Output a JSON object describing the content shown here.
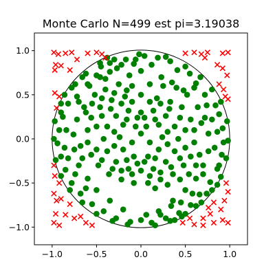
{
  "chart_data": {
    "type": "scatter",
    "title": "Monte Carlo N=499 est pi=3.19038",
    "xlabel": "",
    "ylabel": "",
    "xlim": [
      -1.2,
      1.2
    ],
    "ylim": [
      -1.2,
      1.2
    ],
    "xticks": [
      -1.0,
      -0.5,
      0.0,
      0.5,
      1.0
    ],
    "yticks": [
      -1.0,
      -0.5,
      0.0,
      0.5,
      1.0
    ],
    "xtick_labels": [
      "−1.0",
      "−0.5",
      "0.0",
      "0.5",
      "1.0"
    ],
    "ytick_labels": [
      "−1.0",
      "−0.5",
      "0.0",
      "0.5",
      "1.0"
    ],
    "grid": false,
    "reference_circle": {
      "center": [
        0,
        0
      ],
      "radius": 1,
      "color": "#000000"
    },
    "n_points": 499,
    "pi_estimate": 3.19038,
    "series": [
      {
        "marker": "circle",
        "color": "#008000",
        "points": [
          [
            -0.02,
            0.96
          ],
          [
            0.04,
            0.94
          ],
          [
            -0.17,
            0.9
          ],
          [
            0.19,
            0.92
          ],
          [
            -0.35,
            0.86
          ],
          [
            0.33,
            0.88
          ],
          [
            -0.08,
            0.85
          ],
          [
            0.12,
            0.84
          ],
          [
            -0.27,
            0.8
          ],
          [
            0.41,
            0.78
          ],
          [
            -0.5,
            0.72
          ],
          [
            0.55,
            0.74
          ],
          [
            -0.6,
            0.62
          ],
          [
            0.62,
            0.63
          ],
          [
            0.0,
            0.77
          ],
          [
            -0.13,
            0.72
          ],
          [
            0.23,
            0.7
          ],
          [
            -0.4,
            0.68
          ],
          [
            0.35,
            0.64
          ],
          [
            0.48,
            0.55
          ],
          [
            -0.72,
            0.48
          ],
          [
            0.72,
            0.5
          ],
          [
            -0.82,
            0.4
          ],
          [
            0.84,
            0.38
          ],
          [
            -0.88,
            0.25
          ],
          [
            0.88,
            0.28
          ],
          [
            -0.92,
            0.1
          ],
          [
            0.92,
            0.12
          ],
          [
            -0.94,
            -0.05
          ],
          [
            0.93,
            -0.04
          ],
          [
            -0.9,
            -0.2
          ],
          [
            0.91,
            -0.18
          ],
          [
            -0.85,
            -0.35
          ],
          [
            0.86,
            -0.34
          ],
          [
            -0.78,
            -0.5
          ],
          [
            0.78,
            -0.49
          ],
          [
            -0.68,
            -0.62
          ],
          [
            0.66,
            -0.63
          ],
          [
            -0.55,
            -0.74
          ],
          [
            0.56,
            -0.75
          ],
          [
            -0.42,
            -0.82
          ],
          [
            0.43,
            -0.84
          ],
          [
            -0.28,
            -0.9
          ],
          [
            0.28,
            -0.9
          ],
          [
            -0.12,
            -0.94
          ],
          [
            0.12,
            -0.95
          ],
          [
            0.0,
            -0.92
          ],
          [
            -0.2,
            -0.8
          ],
          [
            0.2,
            -0.82
          ],
          [
            -0.35,
            -0.7
          ],
          [
            0.36,
            -0.7
          ],
          [
            -0.5,
            -0.58
          ],
          [
            0.5,
            -0.58
          ],
          [
            -0.6,
            -0.45
          ],
          [
            0.62,
            -0.45
          ],
          [
            -0.7,
            -0.3
          ],
          [
            0.7,
            -0.3
          ],
          [
            -0.75,
            -0.12
          ],
          [
            0.76,
            -0.14
          ],
          [
            -0.76,
            0.05
          ],
          [
            0.76,
            0.06
          ],
          [
            -0.72,
            0.22
          ],
          [
            0.72,
            0.24
          ],
          [
            -0.64,
            0.36
          ],
          [
            0.64,
            0.36
          ],
          [
            -0.52,
            0.5
          ],
          [
            0.52,
            0.5
          ],
          [
            -0.4,
            0.56
          ],
          [
            0.4,
            0.58
          ],
          [
            -0.25,
            0.62
          ],
          [
            0.25,
            0.6
          ],
          [
            -0.1,
            0.6
          ],
          [
            0.1,
            0.62
          ],
          [
            0.0,
            0.5
          ],
          [
            -0.18,
            0.48
          ],
          [
            0.18,
            0.46
          ],
          [
            -0.33,
            0.44
          ],
          [
            0.33,
            0.42
          ],
          [
            -0.46,
            0.36
          ],
          [
            0.46,
            0.36
          ],
          [
            -0.56,
            0.24
          ],
          [
            0.56,
            0.22
          ],
          [
            -0.6,
            0.1
          ],
          [
            0.6,
            0.1
          ],
          [
            -0.6,
            -0.04
          ],
          [
            0.6,
            -0.04
          ],
          [
            -0.56,
            -0.18
          ],
          [
            0.56,
            -0.2
          ],
          [
            -0.48,
            -0.3
          ],
          [
            0.48,
            -0.3
          ],
          [
            -0.36,
            -0.4
          ],
          [
            0.36,
            -0.4
          ],
          [
            -0.22,
            -0.46
          ],
          [
            0.22,
            -0.46
          ],
          [
            -0.08,
            -0.5
          ],
          [
            0.08,
            -0.5
          ],
          [
            0.0,
            -0.36
          ],
          [
            -0.14,
            -0.34
          ],
          [
            0.14,
            -0.34
          ],
          [
            -0.28,
            -0.26
          ],
          [
            0.28,
            -0.26
          ],
          [
            -0.38,
            -0.14
          ],
          [
            0.38,
            -0.14
          ],
          [
            -0.42,
            0.0
          ],
          [
            0.42,
            0.0
          ],
          [
            -0.38,
            0.14
          ],
          [
            0.38,
            0.14
          ],
          [
            -0.28,
            0.26
          ],
          [
            0.28,
            0.26
          ],
          [
            -0.14,
            0.32
          ],
          [
            0.14,
            0.32
          ],
          [
            0.0,
            0.3
          ],
          [
            -0.2,
            0.16
          ],
          [
            0.2,
            0.16
          ],
          [
            -0.24,
            0.02
          ],
          [
            0.24,
            0.02
          ],
          [
            -0.2,
            -0.12
          ],
          [
            0.2,
            -0.12
          ],
          [
            -0.08,
            -0.2
          ],
          [
            0.08,
            -0.2
          ],
          [
            0.0,
            0.06
          ],
          [
            -0.06,
            0.14
          ],
          [
            0.06,
            0.14
          ],
          [
            -0.1,
            -0.04
          ],
          [
            0.1,
            -0.04
          ],
          [
            -0.3,
            0.9
          ],
          [
            0.28,
            0.93
          ],
          [
            -0.45,
            0.82
          ],
          [
            0.5,
            0.82
          ],
          [
            -0.66,
            0.7
          ],
          [
            0.67,
            0.7
          ],
          [
            -0.78,
            0.58
          ],
          [
            0.8,
            0.56
          ],
          [
            -0.9,
            0.4
          ],
          [
            0.9,
            0.42
          ],
          [
            -0.97,
            0.2
          ],
          [
            0.97,
            0.2
          ],
          [
            -0.98,
            0.0
          ],
          [
            0.98,
            -0.02
          ],
          [
            -0.96,
            -0.24
          ],
          [
            0.96,
            -0.22
          ],
          [
            -0.9,
            -0.42
          ],
          [
            0.9,
            -0.43
          ],
          [
            -0.8,
            -0.58
          ],
          [
            0.8,
            -0.58
          ],
          [
            -0.66,
            -0.72
          ],
          [
            0.68,
            -0.72
          ],
          [
            -0.5,
            -0.85
          ],
          [
            0.5,
            -0.85
          ],
          [
            -0.32,
            -0.93
          ],
          [
            0.33,
            -0.93
          ],
          [
            -0.15,
            -0.97
          ],
          [
            0.16,
            -0.98
          ],
          [
            -0.84,
            0.1
          ],
          [
            0.83,
            -0.1
          ],
          [
            -0.82,
            -0.22
          ],
          [
            0.8,
            0.22
          ],
          [
            -0.68,
            -0.08
          ],
          [
            0.68,
            0.18
          ],
          [
            -0.66,
            -0.22
          ],
          [
            0.66,
            -0.18
          ],
          [
            -0.62,
            0.3
          ],
          [
            0.62,
            -0.3
          ],
          [
            -0.7,
            0.42
          ],
          [
            0.7,
            -0.4
          ],
          [
            -0.58,
            0.6
          ],
          [
            0.58,
            -0.62
          ],
          [
            -0.46,
            0.7
          ],
          [
            0.45,
            -0.72
          ],
          [
            -0.35,
            0.76
          ],
          [
            0.34,
            -0.76
          ],
          [
            -0.22,
            0.84
          ],
          [
            0.22,
            -0.86
          ],
          [
            -0.06,
            0.9
          ],
          [
            0.06,
            -0.86
          ],
          [
            -0.55,
            0.4
          ],
          [
            0.54,
            -0.4
          ],
          [
            -0.44,
            0.46
          ],
          [
            0.44,
            -0.46
          ],
          [
            -0.3,
            0.52
          ],
          [
            0.3,
            -0.52
          ],
          [
            -0.16,
            0.55
          ],
          [
            0.16,
            -0.56
          ],
          [
            -0.5,
            0.14
          ],
          [
            0.5,
            -0.1
          ],
          [
            -0.5,
            -0.12
          ],
          [
            0.5,
            0.1
          ],
          [
            -0.44,
            0.26
          ],
          [
            0.44,
            -0.22
          ],
          [
            -0.44,
            -0.24
          ],
          [
            0.44,
            0.24
          ],
          [
            -0.34,
            0.34
          ],
          [
            0.34,
            -0.32
          ],
          [
            -0.32,
            -0.34
          ],
          [
            0.32,
            0.34
          ],
          [
            -0.22,
            0.4
          ],
          [
            0.22,
            -0.38
          ],
          [
            -0.22,
            -0.36
          ],
          [
            0.22,
            0.4
          ],
          [
            -0.1,
            0.42
          ],
          [
            0.1,
            -0.42
          ],
          [
            -0.1,
            -0.4
          ],
          [
            0.1,
            0.42
          ],
          [
            -0.3,
            0.08
          ],
          [
            0.3,
            -0.06
          ],
          [
            -0.3,
            -0.08
          ],
          [
            0.3,
            0.08
          ],
          [
            -0.16,
            0.22
          ],
          [
            0.16,
            -0.22
          ],
          [
            -0.16,
            -0.24
          ],
          [
            0.16,
            0.22
          ],
          [
            -0.04,
            0.24
          ],
          [
            0.04,
            -0.26
          ],
          [
            -0.04,
            -0.28
          ],
          [
            0.04,
            0.24
          ],
          [
            -0.9,
            0.3
          ],
          [
            0.88,
            -0.3
          ],
          [
            -0.86,
            0.5
          ],
          [
            0.86,
            -0.52
          ],
          [
            -0.74,
            0.62
          ],
          [
            0.74,
            -0.62
          ],
          [
            -0.62,
            0.74
          ],
          [
            0.62,
            -0.76
          ],
          [
            -0.46,
            0.86
          ],
          [
            0.46,
            -0.88
          ],
          [
            -0.38,
            0.92
          ],
          [
            0.38,
            -0.92
          ],
          [
            -0.62,
            -0.56
          ],
          [
            0.6,
            0.58
          ],
          [
            -0.74,
            -0.4
          ],
          [
            0.74,
            0.38
          ],
          [
            -0.86,
            -0.1
          ],
          [
            0.86,
            0.08
          ]
        ]
      },
      {
        "marker": "x",
        "color": "#ff0000",
        "points": [
          [
            -0.98,
            0.98
          ],
          [
            -0.93,
            0.96
          ],
          [
            -0.85,
            0.97
          ],
          [
            -0.78,
            0.98
          ],
          [
            -0.6,
            0.97
          ],
          [
            -0.5,
            0.98
          ],
          [
            -0.44,
            0.96
          ],
          [
            -0.4,
            0.92
          ],
          [
            0.5,
            0.97
          ],
          [
            0.6,
            0.98
          ],
          [
            0.68,
            0.96
          ],
          [
            0.75,
            0.98
          ],
          [
            0.92,
            0.97
          ],
          [
            0.98,
            0.98
          ],
          [
            -0.96,
            0.84
          ],
          [
            -0.9,
            0.83
          ],
          [
            -0.72,
            0.9
          ],
          [
            -0.8,
            0.78
          ],
          [
            0.72,
            0.92
          ],
          [
            0.86,
            0.84
          ],
          [
            0.92,
            0.8
          ],
          [
            0.97,
            0.72
          ],
          [
            -0.97,
            0.78
          ],
          [
            -0.97,
            0.52
          ],
          [
            -0.92,
            0.48
          ],
          [
            -0.95,
            0.35
          ],
          [
            0.95,
            0.48
          ],
          [
            0.98,
            0.45
          ],
          [
            0.88,
            0.62
          ],
          [
            0.93,
            0.56
          ],
          [
            -0.98,
            -0.3
          ],
          [
            -0.97,
            -0.42
          ],
          [
            -0.92,
            -0.5
          ],
          [
            -0.98,
            -0.62
          ],
          [
            -0.95,
            -0.7
          ],
          [
            -0.9,
            -0.68
          ],
          [
            -0.96,
            -0.85
          ],
          [
            -0.98,
            -0.95
          ],
          [
            -0.92,
            -0.98
          ],
          [
            -0.85,
            -0.86
          ],
          [
            -0.8,
            -0.74
          ],
          [
            -0.75,
            -0.9
          ],
          [
            -0.68,
            -0.88
          ],
          [
            -0.62,
            -0.95
          ],
          [
            -0.55,
            -0.98
          ],
          [
            0.47,
            -0.95
          ],
          [
            0.55,
            -0.9
          ],
          [
            0.6,
            -0.97
          ],
          [
            0.7,
            -0.9
          ],
          [
            0.78,
            -0.85
          ],
          [
            0.82,
            -0.72
          ],
          [
            0.9,
            -0.8
          ],
          [
            0.94,
            -0.7
          ],
          [
            0.98,
            -0.6
          ],
          [
            0.96,
            -0.5
          ],
          [
            0.92,
            -0.92
          ],
          [
            0.98,
            -0.95
          ],
          [
            0.82,
            -0.95
          ],
          [
            0.76,
            -0.78
          ],
          [
            0.7,
            -0.98
          ]
        ]
      }
    ]
  }
}
